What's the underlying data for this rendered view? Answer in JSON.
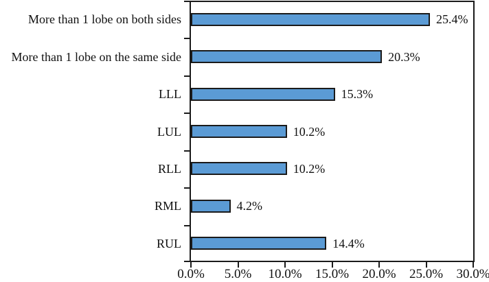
{
  "chart_data": {
    "type": "bar",
    "orientation": "horizontal",
    "title": "",
    "xlabel": "",
    "ylabel": "",
    "categories": [
      "More than 1 lobe on both sides",
      "More than 1 lobe on the same side",
      "LLL",
      "LUL",
      "RLL",
      "RML",
      "RUL"
    ],
    "values": [
      25.4,
      20.3,
      15.3,
      10.2,
      10.2,
      4.2,
      14.4
    ],
    "value_labels": [
      "25.4%",
      "20.3%",
      "15.3%",
      "10.2%",
      "10.2%",
      "4.2%",
      "14.4%"
    ],
    "xlim": [
      0,
      30
    ],
    "x_ticks": [
      0,
      5,
      10,
      15,
      20,
      25,
      30
    ],
    "x_tick_labels": [
      "0.0%",
      "5.0%",
      "10.0%",
      "15.0%",
      "20.0%",
      "25.0%",
      "30.0%"
    ],
    "grid": false,
    "legend": null,
    "colors": {
      "bar_fill": "#5B9BD5",
      "bar_border": "#1a1a1a",
      "axis": "#1a1a1a",
      "text": "#111111",
      "background": "#ffffff"
    }
  }
}
